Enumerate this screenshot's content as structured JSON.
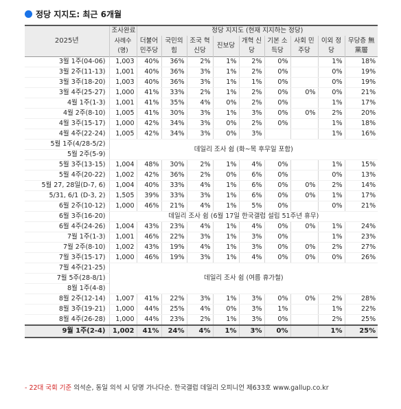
{
  "title": "정당 지지도: 최근 6개월",
  "header": {
    "year": "2025년",
    "sample_top": "조사완료",
    "sample_bottom": "사례수 (명)",
    "party_group": "정당 지지도 (현재 지지하는 정당)",
    "parties": [
      "더불어 민주당",
      "국민의 힘",
      "조국 혁신당",
      "진보당",
      "개혁 신당",
      "기본 소득당",
      "사회 민주당",
      "이외 정당",
      "무당층 無黨層"
    ]
  },
  "rows": [
    {
      "label": "3월 1주(04-06)",
      "cells": [
        "1,003",
        "40%",
        "36%",
        "2%",
        "1%",
        "2%",
        "0%",
        "",
        "1%",
        "18%"
      ],
      "group_start": true
    },
    {
      "label": "3월 2주(11-13)",
      "cells": [
        "1,001",
        "40%",
        "36%",
        "3%",
        "1%",
        "2%",
        "0%",
        "",
        "0%",
        "19%"
      ]
    },
    {
      "label": "3월 3주(18-20)",
      "cells": [
        "1,003",
        "40%",
        "36%",
        "3%",
        "1%",
        "1%",
        "0%",
        "",
        "0%",
        "19%"
      ]
    },
    {
      "label": "3월 4주(25-27)",
      "cells": [
        "1,000",
        "41%",
        "33%",
        "2%",
        "1%",
        "2%",
        "0%",
        "0%",
        "0%",
        "21%"
      ]
    },
    {
      "label": "4월 1주(1-3)",
      "cells": [
        "1,001",
        "41%",
        "35%",
        "4%",
        "0%",
        "2%",
        "0%",
        "",
        "1%",
        "17%"
      ],
      "group_start": true
    },
    {
      "label": "4월 2주(8-10)",
      "cells": [
        "1,005",
        "41%",
        "30%",
        "3%",
        "1%",
        "3%",
        "0%",
        "0%",
        "2%",
        "20%"
      ]
    },
    {
      "label": "4월 3주(15-17)",
      "cells": [
        "1,000",
        "42%",
        "34%",
        "3%",
        "0%",
        "2%",
        "0%",
        "",
        "1%",
        "18%"
      ]
    },
    {
      "label": "4월 4주(22-24)",
      "cells": [
        "1,005",
        "42%",
        "34%",
        "3%",
        "0%",
        "3%",
        "",
        "",
        "1%",
        "16%"
      ]
    },
    {
      "label": "5월 1주(4/28-5/2)",
      "merged": "데일리 조사 쉼 (화~목 후무일 포함)",
      "group_start": true
    },
    {
      "label": "5월 2주(5-9)",
      "cells": [
        "",
        "",
        "",
        "",
        "",
        "",
        "",
        "",
        "",
        ""
      ]
    },
    {
      "label": "5월 3주(13-15)",
      "cells": [
        "1,004",
        "48%",
        "30%",
        "2%",
        "1%",
        "4%",
        "0%",
        "",
        "1%",
        "15%"
      ],
      "group_start": true
    },
    {
      "label": "5월 4주(20-22)",
      "cells": [
        "1,002",
        "42%",
        "36%",
        "2%",
        "0%",
        "6%",
        "0%",
        "",
        "0%",
        "13%"
      ]
    },
    {
      "label": "5월 27, 28일(D-7, 6)",
      "cells": [
        "1,004",
        "40%",
        "33%",
        "4%",
        "1%",
        "6%",
        "0%",
        "0%",
        "2%",
        "14%"
      ],
      "group_start": true
    },
    {
      "label": "5/31, 6/1 (D-3, 2)",
      "cells": [
        "1,505",
        "39%",
        "33%",
        "3%",
        "1%",
        "6%",
        "0%",
        "0%",
        "1%",
        "17%"
      ]
    },
    {
      "label": "6월 2주(10-12)",
      "cells": [
        "1,000",
        "46%",
        "21%",
        "4%",
        "1%",
        "5%",
        "0%",
        "",
        "0%",
        "21%"
      ],
      "group_start": true
    },
    {
      "label": "6월 3주(16-20)",
      "merged": "데일리 조사 쉼 (6월 17일 한국갤럽 설립 51주년 휴무)"
    },
    {
      "label": "6월 4주(24-26)",
      "cells": [
        "1,004",
        "43%",
        "23%",
        "4%",
        "1%",
        "4%",
        "0%",
        "0%",
        "1%",
        "24%"
      ]
    },
    {
      "label": "7월 1주(1-3)",
      "cells": [
        "1,001",
        "46%",
        "22%",
        "3%",
        "1%",
        "3%",
        "0%",
        "",
        "1%",
        "23%"
      ],
      "group_start": true
    },
    {
      "label": "7월 2주(8-10)",
      "cells": [
        "1,002",
        "43%",
        "19%",
        "4%",
        "1%",
        "3%",
        "0%",
        "0%",
        "2%",
        "27%"
      ]
    },
    {
      "label": "7월 3주(15-17)",
      "cells": [
        "1,000",
        "46%",
        "19%",
        "3%",
        "1%",
        "4%",
        "0%",
        "0%",
        "0%",
        "26%"
      ]
    },
    {
      "label": "7월 4주(21-25)",
      "merged": "데일리 조사 쉼 (여름 휴가철)",
      "group_start": true
    },
    {
      "label": "7월 5주(28-8/1)",
      "cells": [
        "",
        "",
        "",
        "",
        "",
        "",
        "",
        "",
        "",
        ""
      ]
    },
    {
      "label": "8월 1주(4-8)",
      "cells": [
        "",
        "",
        "",
        "",
        "",
        "",
        "",
        "",
        "",
        ""
      ]
    },
    {
      "label": "8월 2주(12-14)",
      "cells": [
        "1,007",
        "41%",
        "22%",
        "3%",
        "1%",
        "3%",
        "0%",
        "0%",
        "2%",
        "28%"
      ],
      "group_start": true
    },
    {
      "label": "8월 3주(19-21)",
      "cells": [
        "1,000",
        "44%",
        "25%",
        "4%",
        "0%",
        "3%",
        "1%",
        "",
        "1%",
        "22%"
      ]
    },
    {
      "label": "8월 4주(26-28)",
      "cells": [
        "1,000",
        "44%",
        "23%",
        "2%",
        "1%",
        "3%",
        "0%",
        "",
        "2%",
        "25%"
      ]
    },
    {
      "label": "9월 1주(2-4)",
      "cells": [
        "1,002",
        "41%",
        "24%",
        "4%",
        "1%",
        "3%",
        "0%",
        "",
        "1%",
        "25%"
      ],
      "last": true
    }
  ],
  "footnote": {
    "red": "- 22대 국회 기준",
    "rest": " 의석순, 동일 의석 시 당명 가나다순. 한국갤럽 데일리 오피니언 제633호 www.gallup.co.kr"
  }
}
